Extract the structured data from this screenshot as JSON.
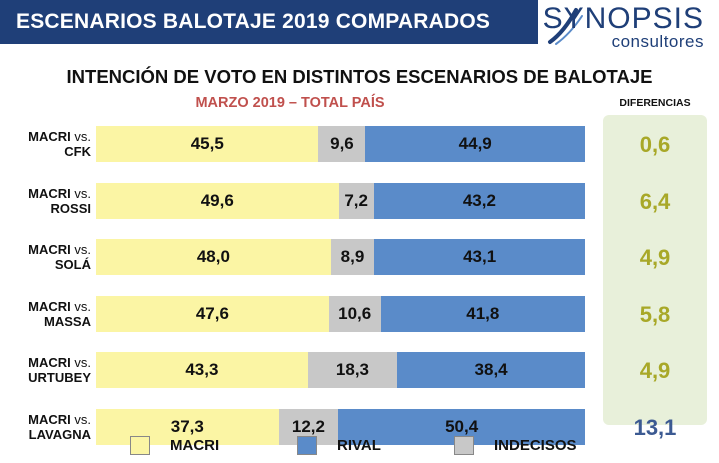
{
  "header": {
    "title": "ESCENARIOS BALOTAJE 2019 COMPARADOS"
  },
  "logo": {
    "main": "SYNOPSIS",
    "sub": "consultores"
  },
  "colors": {
    "header_bg": "#1f3f78",
    "macri": "#fbf5a4",
    "rival": "#5a8bc9",
    "undecided": "#c8c8c8",
    "diff_panel_bg": "#e8f0da",
    "diff_text_green": "#a8a828",
    "diff_text_blue": "#3c5a92",
    "subtitle": "#c0504d"
  },
  "chart_data": {
    "type": "bar",
    "orientation": "horizontal",
    "stacked": true,
    "title": "INTENCIÓN DE VOTO EN DISTINTOS ESCENARIOS DE BALOTAJE",
    "subtitle": "MARZO 2019 – TOTAL PAÍS",
    "categories": [
      {
        "lead": "MACRI",
        "vs": "vs.",
        "rival": "CFK"
      },
      {
        "lead": "MACRI",
        "vs": "vs.",
        "rival": "ROSSI"
      },
      {
        "lead": "MACRI",
        "vs": "vs.",
        "rival": "SOLÁ"
      },
      {
        "lead": "MACRI",
        "vs": "vs.",
        "rival": "MASSA"
      },
      {
        "lead": "MACRI",
        "vs": "vs.",
        "rival": "URTUBEY"
      },
      {
        "lead": "MACRI",
        "vs": "vs.",
        "rival": "LAVAGNA"
      }
    ],
    "series": [
      {
        "key": "macri",
        "name": "MACRI",
        "values": [
          45.5,
          49.6,
          48.0,
          47.6,
          43.3,
          37.3
        ],
        "labels": [
          "45,5",
          "49,6",
          "48,0",
          "47,6",
          "43,3",
          "37,3"
        ]
      },
      {
        "key": "undecided",
        "name": "INDECISOS",
        "values": [
          9.6,
          7.2,
          8.9,
          10.6,
          18.3,
          12.2
        ],
        "labels": [
          "9,6",
          "7,2",
          "8,9",
          "10,6",
          "18,3",
          "12,2"
        ]
      },
      {
        "key": "rival",
        "name": "RIVAL",
        "values": [
          44.9,
          43.2,
          43.1,
          41.8,
          38.4,
          50.4
        ],
        "labels": [
          "44,9",
          "43,2",
          "43,1",
          "41,8",
          "38,4",
          "50,4"
        ]
      }
    ],
    "differences": {
      "header": "DIFERENCIAS",
      "values": [
        0.6,
        6.4,
        4.9,
        5.8,
        4.9,
        13.1
      ],
      "labels": [
        "0,6",
        "6,4",
        "4,9",
        "5,8",
        "4,9",
        "13,1"
      ],
      "leader": [
        "macri",
        "macri",
        "macri",
        "macri",
        "macri",
        "rival"
      ]
    },
    "legend": [
      "MACRI",
      "RIVAL",
      "INDECISOS"
    ],
    "legend_position": "bottom",
    "grid": false
  }
}
